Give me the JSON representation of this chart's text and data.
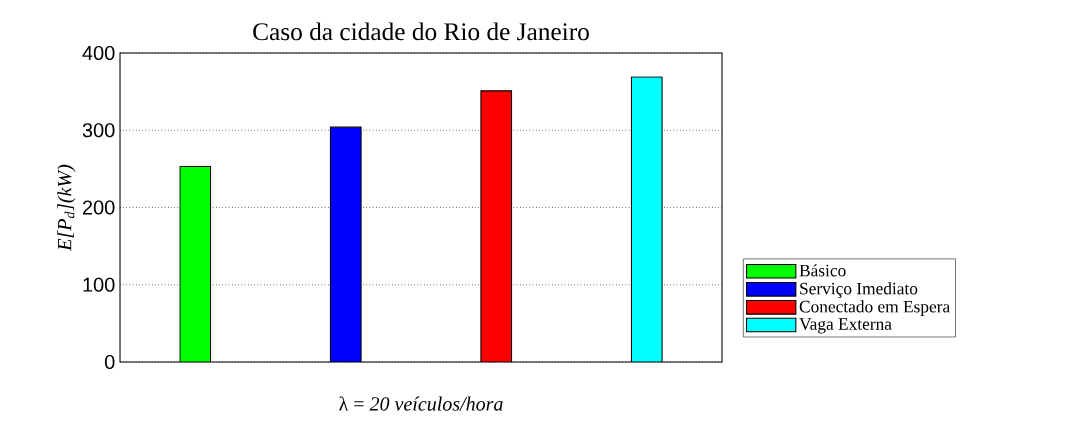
{
  "chart_data": {
    "type": "bar",
    "title": "Caso da  cidade do Rio de Janeiro",
    "xlabel": "λ = *20 veículos/hora*",
    "ylabel": "*E[P$_{d}$](kW)*",
    "categories": [
      null,
      null,
      null,
      null
    ],
    "series": [
      {
        "name": "Básico",
        "color": "#00ff00",
        "values": [
          253,
          null,
          null,
          null
        ]
      },
      {
        "name": "Serviço Imediato",
        "color": "#0000ff",
        "values": [
          null,
          304,
          null,
          null
        ]
      },
      {
        "name": "Conectado em Espera",
        "color": "#ff0000",
        "values": [
          null,
          null,
          351,
          null
        ]
      },
      {
        "name": "Vaga Externa",
        "color": "#00ffff",
        "values": [
          null,
          null,
          null,
          369
        ]
      }
    ],
    "ylim": [
      0,
      400
    ],
    "yticks": [
      0,
      100,
      200,
      300,
      400
    ],
    "grid": "y",
    "legend": "right",
    "tick_labels": "y"
  }
}
